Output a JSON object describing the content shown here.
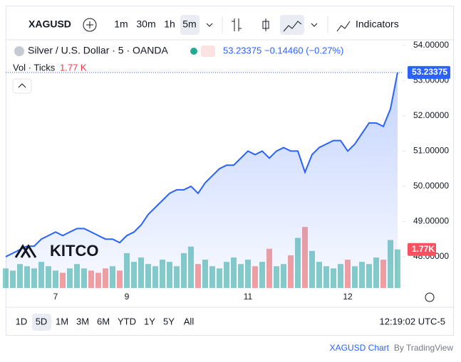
{
  "toolbar": {
    "symbol": "XAGUSD",
    "intervals": [
      "1m",
      "30m",
      "1h",
      "5m"
    ],
    "indicators": "Indicators"
  },
  "legend": {
    "title": "Silver / U.S. Dollar · 5 · OANDA",
    "change": "−0.14460 (−0.27%)",
    "volume_name": "Vol · Ticks",
    "volume_value": "1.77 K"
  },
  "watermark": "KITCO",
  "ranges": [
    "1D",
    "5D",
    "1M",
    "3M",
    "6M",
    "YTD",
    "1Y",
    "5Y",
    "All"
  ],
  "clock": "12:19:02 UTC-5",
  "footer": {
    "chart": "XAGUSD Chart",
    "by": "By TradingView"
  },
  "chart_data": {
    "type": "line",
    "categories": [
      null,
      null,
      null,
      null,
      null,
      null,
      null,
      "7",
      null,
      null,
      null,
      null,
      null,
      null,
      null,
      null,
      null,
      "9",
      null,
      null,
      null,
      null,
      null,
      null,
      null,
      null,
      null,
      null,
      null,
      null,
      null,
      null,
      null,
      null,
      "11",
      null,
      null,
      null,
      null,
      null,
      null,
      null,
      null,
      null,
      null,
      null,
      null,
      null,
      "12",
      null,
      null,
      null,
      null,
      null,
      null,
      null
    ],
    "series": [
      {
        "name": "XAGUSD",
        "color": "#2962ff",
        "values": [
          48.0,
          48.1,
          48.2,
          48.3,
          48.3,
          48.5,
          48.6,
          48.7,
          48.6,
          48.7,
          48.8,
          48.8,
          48.7,
          48.6,
          48.5,
          48.5,
          48.4,
          48.6,
          48.7,
          48.9,
          49.2,
          49.4,
          49.6,
          49.8,
          49.9,
          49.9,
          50.0,
          49.8,
          50.1,
          50.3,
          50.5,
          50.6,
          50.6,
          50.8,
          51.0,
          50.9,
          51.0,
          50.8,
          51.0,
          51.1,
          51.0,
          51.0,
          50.4,
          50.9,
          51.1,
          51.2,
          51.3,
          51.3,
          51.0,
          51.2,
          51.5,
          51.8,
          51.8,
          51.7,
          52.2,
          53.23375
        ]
      }
    ],
    "volume": {
      "name": "Vol · Ticks",
      "up_color": "rgba(38,166,154,0.55)",
      "down_color": "rgba(239,83,80,0.55)",
      "y2lim": [
        0,
        4.4
      ],
      "values": [
        0.9,
        0.8,
        1.1,
        1.0,
        0.9,
        1.2,
        1.0,
        0.8,
        0.7,
        0.9,
        1.1,
        0.9,
        0.8,
        0.7,
        0.9,
        1.0,
        0.8,
        1.6,
        1.2,
        1.4,
        1.1,
        1.0,
        1.3,
        1.2,
        1.0,
        1.6,
        1.9,
        1.1,
        1.3,
        1.0,
        0.9,
        1.2,
        1.4,
        1.1,
        1.3,
        1.0,
        1.2,
        1.8,
        1.0,
        1.1,
        1.5,
        2.3,
        2.8,
        1.7,
        1.2,
        1.0,
        0.9,
        1.1,
        1.3,
        1.0,
        1.2,
        1.1,
        1.4,
        1.3,
        2.2,
        1.77
      ],
      "value_labels": [
        null,
        null,
        null,
        null,
        null,
        null,
        null,
        null,
        null,
        null,
        null,
        null,
        null,
        null,
        null,
        null,
        null,
        null,
        null,
        null,
        null,
        null,
        null,
        null,
        null,
        null,
        null,
        null,
        null,
        null,
        null,
        null,
        null,
        null,
        null,
        null,
        null,
        null,
        null,
        null,
        null,
        null,
        null,
        null,
        null,
        null,
        null,
        null,
        null,
        null,
        null,
        null,
        null,
        null,
        null,
        "1.77K"
      ]
    },
    "ylim": [
      47.11,
      54.18
    ],
    "yticks": [
      {
        "value": 48,
        "label": "48.00000"
      },
      {
        "value": 49,
        "label": "49.00000"
      },
      {
        "value": 50,
        "label": "50.00000"
      },
      {
        "value": 51,
        "label": "51.00000"
      },
      {
        "value": 52,
        "label": "52.00000"
      },
      {
        "value": 53,
        "label": "53.00000"
      },
      {
        "value": 54,
        "label": "54.00000"
      }
    ],
    "grid": false
  }
}
